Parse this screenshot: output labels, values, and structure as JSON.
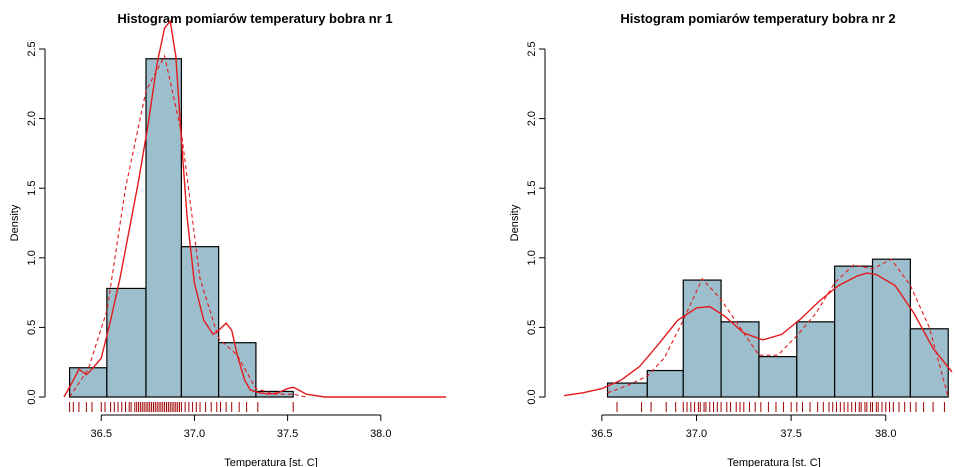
{
  "colors": {
    "bar_fill": "#9dbfcd",
    "bar_stroke": "#000000",
    "density_line": "#e41a1c",
    "rug": "#a00000"
  },
  "chart_data": [
    {
      "type": "bar",
      "title": "Histogram pomiarów temperatury bobra nr 1",
      "xlabel": "Temperatura [st. C]",
      "ylabel": "Density",
      "xlim": [
        36.3,
        38.35
      ],
      "ylim": [
        0,
        2.5
      ],
      "xticks": [
        36.5,
        37.0,
        37.5,
        38.0
      ],
      "xtick_labels": [
        "36.5",
        "37.0",
        "37.5",
        "38.0"
      ],
      "yticks": [
        0,
        0.5,
        1.0,
        1.5,
        2.0,
        2.5
      ],
      "ytick_labels": [
        "0.0",
        "0.5",
        "1.0",
        "1.5",
        "2.0",
        "2.5"
      ],
      "x_axis_line": [
        36.5,
        38.0
      ],
      "bins": [
        {
          "from": 36.33,
          "to": 36.53,
          "density": 0.21
        },
        {
          "from": 36.53,
          "to": 36.74,
          "density": 0.78
        },
        {
          "from": 36.74,
          "to": 36.93,
          "density": 2.43
        },
        {
          "from": 36.93,
          "to": 37.13,
          "density": 1.08
        },
        {
          "from": 37.13,
          "to": 37.33,
          "density": 0.39
        },
        {
          "from": 37.33,
          "to": 37.53,
          "density": 0.04
        }
      ],
      "series": [
        {
          "style": "solid",
          "x": [
            36.3,
            36.35,
            36.38,
            36.42,
            36.45,
            36.5,
            36.55,
            36.6,
            36.65,
            36.7,
            36.75,
            36.8,
            36.84,
            36.87,
            36.9,
            36.93,
            36.96,
            37.0,
            37.05,
            37.1,
            37.13,
            37.17,
            37.2,
            37.23,
            37.27,
            37.3,
            37.35,
            37.4,
            37.45,
            37.5,
            37.53,
            37.56,
            37.6,
            37.7,
            38.35
          ],
          "y": [
            0.0,
            0.12,
            0.2,
            0.16,
            0.2,
            0.28,
            0.55,
            0.85,
            1.2,
            1.55,
            1.95,
            2.4,
            2.65,
            2.7,
            2.45,
            1.85,
            1.3,
            0.82,
            0.55,
            0.45,
            0.48,
            0.53,
            0.48,
            0.3,
            0.12,
            0.05,
            0.03,
            0.02,
            0.03,
            0.06,
            0.07,
            0.05,
            0.02,
            0.0,
            0.0
          ]
        },
        {
          "style": "dashed",
          "x": [
            36.33,
            36.43,
            36.53,
            36.63,
            36.74,
            36.84,
            36.93,
            37.03,
            37.13,
            37.23,
            37.33,
            37.43,
            37.53,
            37.6
          ],
          "y": [
            0.0,
            0.2,
            0.62,
            1.5,
            2.2,
            2.45,
            1.9,
            0.85,
            0.42,
            0.3,
            0.06,
            0.02,
            0.02,
            0.0
          ]
        }
      ],
      "rug": [
        36.33,
        36.35,
        36.38,
        36.42,
        36.45,
        36.5,
        36.52,
        36.55,
        36.57,
        36.59,
        36.61,
        36.63,
        36.65,
        36.66,
        36.68,
        36.69,
        36.7,
        36.71,
        36.72,
        36.73,
        36.74,
        36.75,
        36.76,
        36.77,
        36.78,
        36.79,
        36.8,
        36.81,
        36.82,
        36.83,
        36.84,
        36.85,
        36.86,
        36.87,
        36.88,
        36.89,
        36.9,
        36.91,
        36.92,
        36.93,
        36.95,
        36.97,
        36.99,
        37.01,
        37.03,
        37.06,
        37.09,
        37.12,
        37.14,
        37.17,
        37.2,
        37.24,
        37.28,
        37.34,
        37.53
      ]
    },
    {
      "type": "bar",
      "title": "Histogram pomiarów temperatury bobra nr 2",
      "xlabel": "Temperatura [st. C]",
      "ylabel": "Density",
      "xlim": [
        36.3,
        38.35
      ],
      "ylim": [
        0,
        2.5
      ],
      "xticks": [
        36.5,
        37.0,
        37.5,
        38.0
      ],
      "xtick_labels": [
        "36.5",
        "37.0",
        "37.5",
        "38.0"
      ],
      "yticks": [
        0,
        0.5,
        1.0,
        1.5,
        2.0,
        2.5
      ],
      "ytick_labels": [
        "0.0",
        "0.5",
        "1.0",
        "1.5",
        "2.0",
        "2.5"
      ],
      "x_axis_line": [
        36.5,
        38.0
      ],
      "bins": [
        {
          "from": 36.53,
          "to": 36.74,
          "density": 0.1
        },
        {
          "from": 36.74,
          "to": 36.93,
          "density": 0.19
        },
        {
          "from": 36.93,
          "to": 37.13,
          "density": 0.84
        },
        {
          "from": 37.13,
          "to": 37.33,
          "density": 0.54
        },
        {
          "from": 37.33,
          "to": 37.53,
          "density": 0.29
        },
        {
          "from": 37.53,
          "to": 37.73,
          "density": 0.54
        },
        {
          "from": 37.73,
          "to": 37.93,
          "density": 0.94
        },
        {
          "from": 37.93,
          "to": 38.13,
          "density": 0.99
        },
        {
          "from": 38.13,
          "to": 38.33,
          "density": 0.49
        }
      ],
      "series": [
        {
          "style": "solid",
          "x": [
            36.3,
            36.4,
            36.5,
            36.6,
            36.7,
            36.8,
            36.9,
            37.0,
            37.07,
            37.15,
            37.25,
            37.35,
            37.45,
            37.55,
            37.65,
            37.75,
            37.85,
            37.9,
            37.95,
            38.05,
            38.15,
            38.25,
            38.35
          ],
          "y": [
            0.01,
            0.03,
            0.06,
            0.12,
            0.22,
            0.38,
            0.55,
            0.64,
            0.65,
            0.58,
            0.46,
            0.41,
            0.45,
            0.56,
            0.69,
            0.8,
            0.87,
            0.89,
            0.88,
            0.8,
            0.6,
            0.35,
            0.18
          ]
        },
        {
          "style": "dashed",
          "x": [
            36.53,
            36.63,
            36.74,
            36.83,
            36.93,
            37.03,
            37.13,
            37.23,
            37.33,
            37.43,
            37.53,
            37.63,
            37.73,
            37.83,
            37.93,
            38.03,
            38.13,
            38.23,
            38.33
          ],
          "y": [
            0.03,
            0.08,
            0.15,
            0.28,
            0.55,
            0.85,
            0.7,
            0.5,
            0.3,
            0.3,
            0.44,
            0.6,
            0.82,
            0.95,
            0.92,
            0.99,
            0.8,
            0.5,
            0.0
          ]
        }
      ],
      "rug": [
        36.58,
        36.71,
        36.76,
        36.84,
        36.89,
        36.93,
        36.95,
        36.97,
        36.99,
        37.01,
        37.02,
        37.04,
        37.05,
        37.07,
        37.09,
        37.11,
        37.13,
        37.16,
        37.18,
        37.21,
        37.23,
        37.25,
        37.28,
        37.31,
        37.34,
        37.38,
        37.42,
        37.46,
        37.5,
        37.53,
        37.56,
        37.6,
        37.64,
        37.67,
        37.7,
        37.72,
        37.74,
        37.76,
        37.78,
        37.8,
        37.82,
        37.84,
        37.86,
        37.87,
        37.89,
        37.9,
        37.92,
        37.93,
        37.95,
        37.96,
        37.98,
        38.0,
        38.02,
        38.04,
        38.07,
        38.1,
        38.13,
        38.16,
        38.2,
        38.25,
        38.31
      ]
    }
  ]
}
